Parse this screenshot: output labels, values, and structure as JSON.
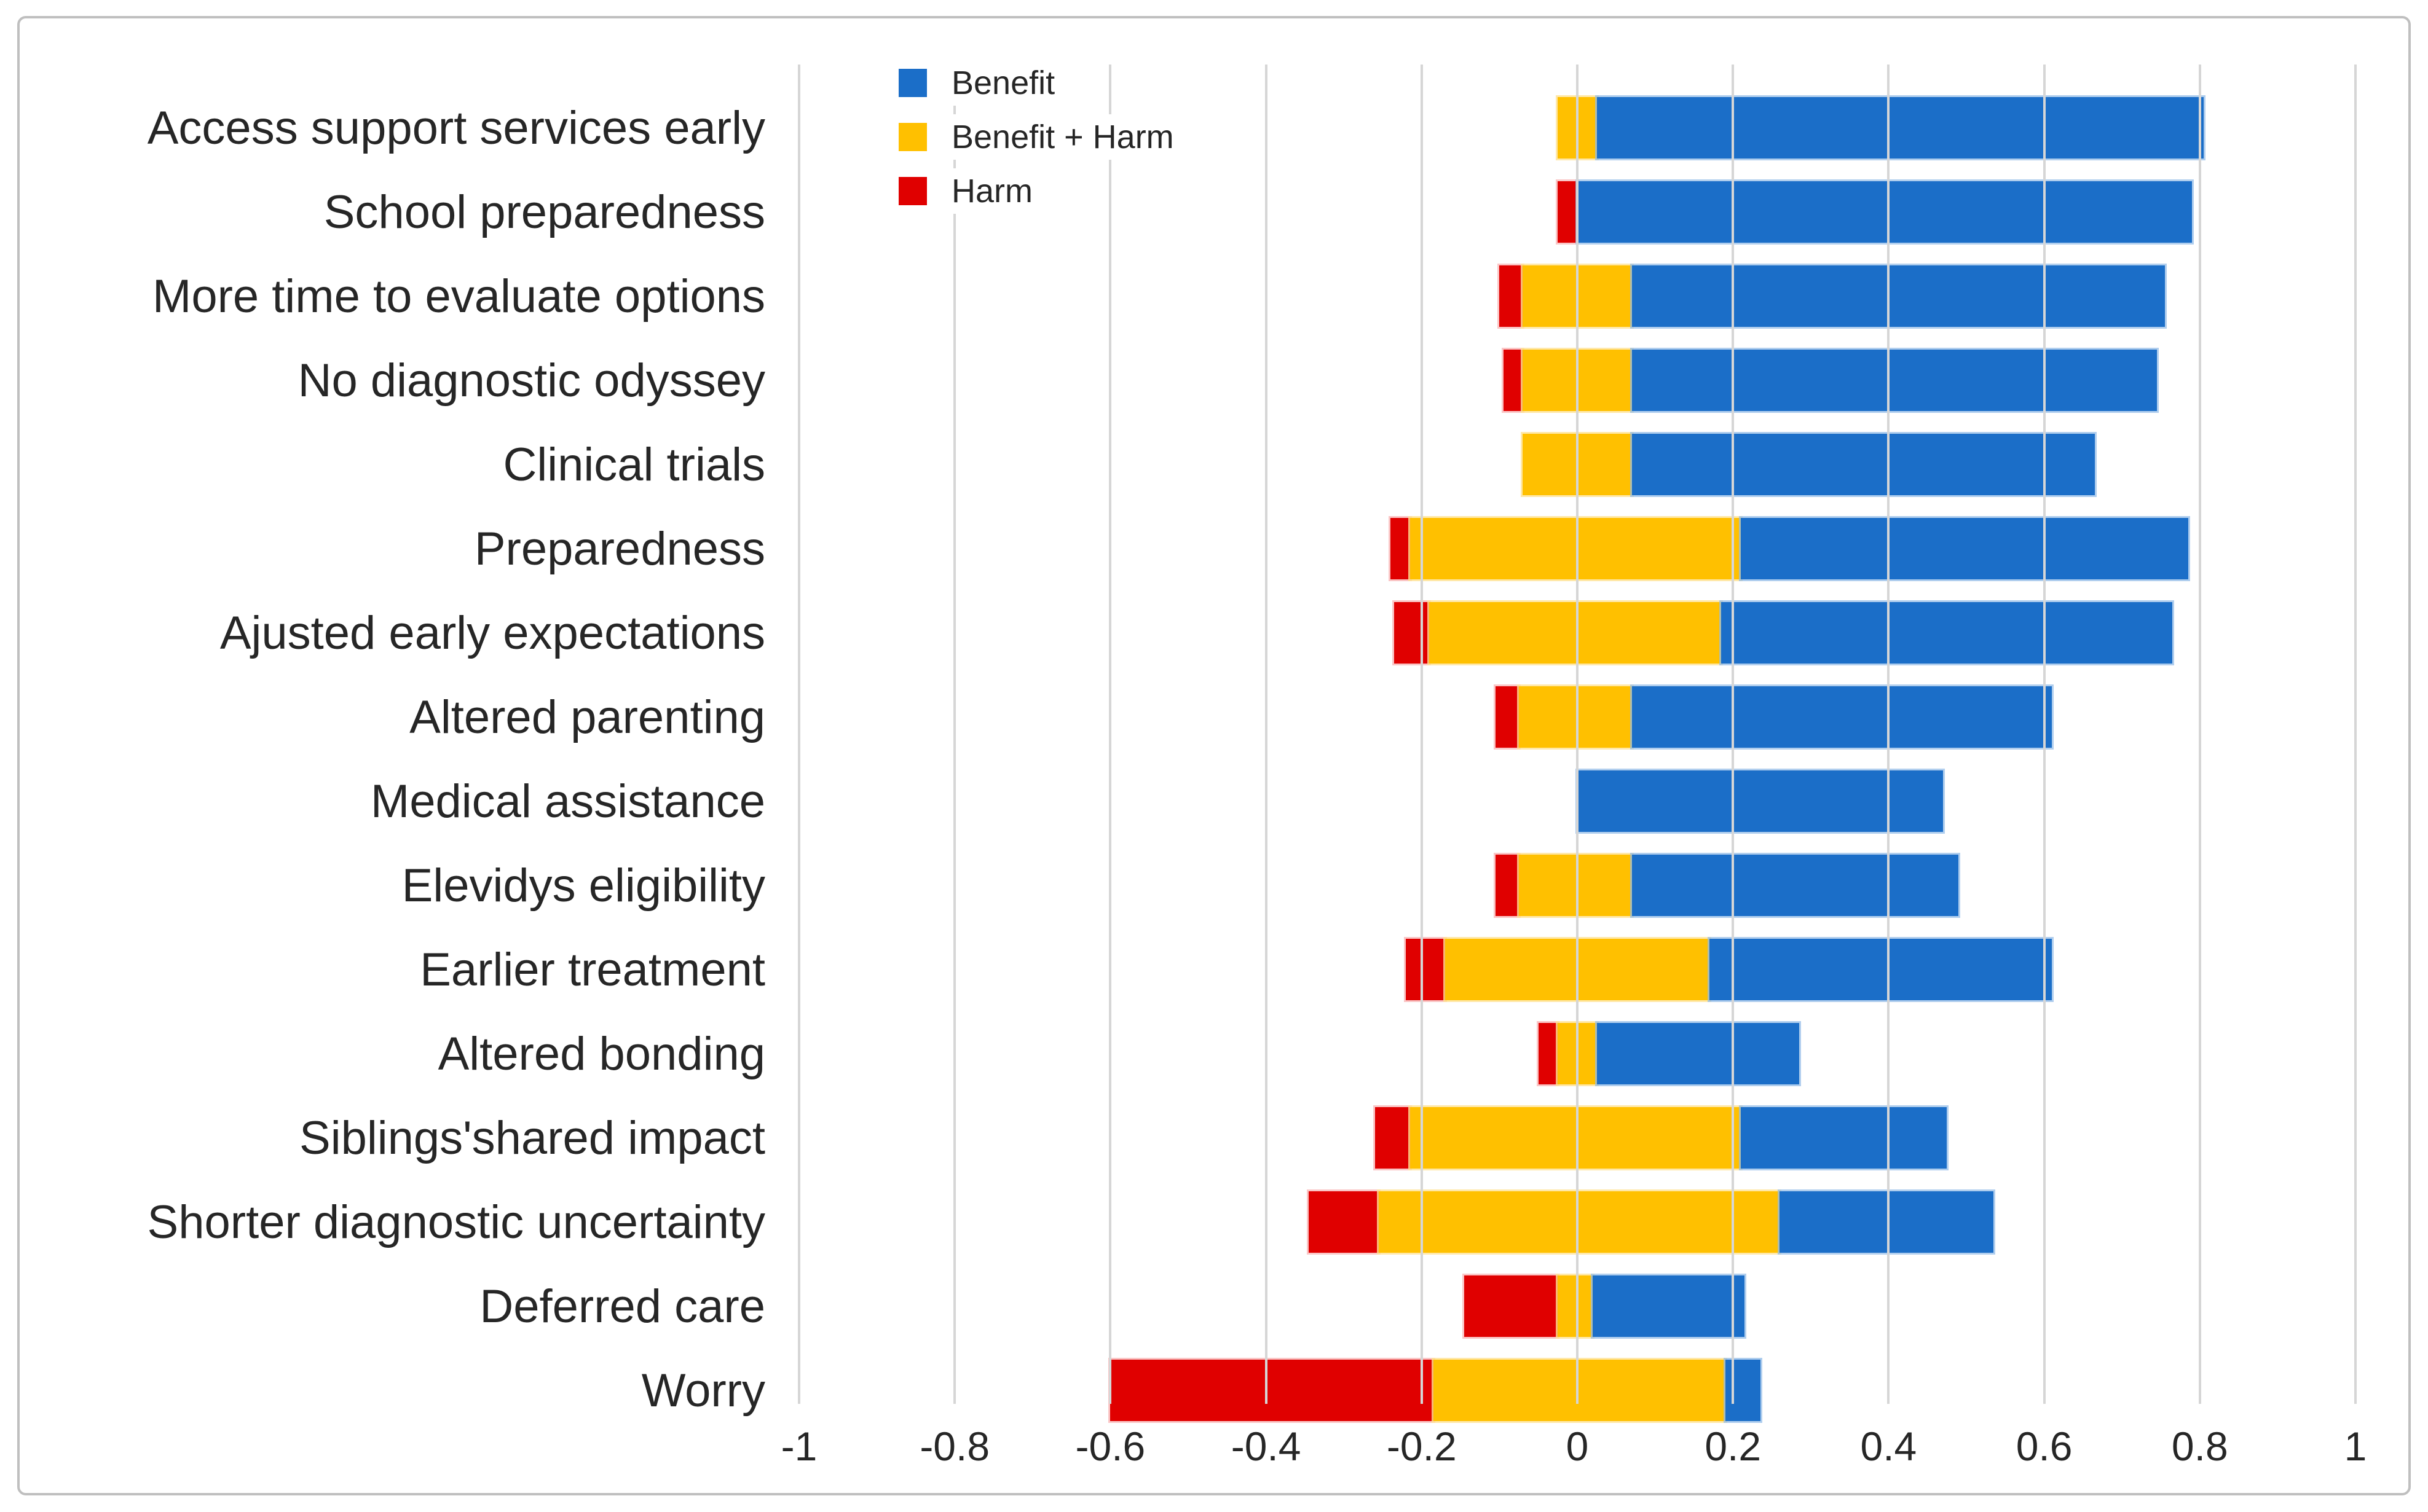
{
  "chart_data": {
    "type": "bar",
    "variant": "horizontal-diverging-stacked",
    "title": "",
    "xlabel": "",
    "ylabel": "",
    "xlim": [
      -1,
      1
    ],
    "xticks": [
      -1,
      -0.8,
      -0.6,
      -0.4,
      -0.2,
      0,
      0.2,
      0.4,
      0.6,
      0.8,
      1
    ],
    "xtick_labels": [
      "-1",
      "-0.8",
      "-0.6",
      "-0.4",
      "-0.2",
      "0",
      "0.2",
      "0.4",
      "0.6",
      "0.8",
      "1"
    ],
    "grid": "vertical gridlines, drawn over bars",
    "legend": {
      "position": "top-left",
      "items": [
        {
          "key": "benefit",
          "label": "Benefit",
          "color": "#1B6EC8"
        },
        {
          "key": "benefit_harm",
          "label": "Benefit + Harm",
          "color": "#FFC000"
        },
        {
          "key": "harm",
          "label": "Harm",
          "color": "#E00000"
        }
      ]
    },
    "series_order": [
      "harm",
      "benefit_harm",
      "benefit"
    ],
    "categories": [
      "Access support services early",
      "School preparedness",
      "More time to evaluate options",
      "No diagnostic odyssey",
      "Clinical trials",
      "Preparedness",
      "Ajusted early expectations",
      "Altered parenting",
      "Medical assistance",
      "Elevidys eligibility",
      "Earlier treatment",
      "Altered bonding",
      "Siblings'shared impact",
      "Shorter diagnostic uncertainty",
      "Deferred care",
      "Worry"
    ],
    "rows": [
      {
        "label": "Access support services early",
        "harm": null,
        "benefit_harm": [
          -0.025,
          0.025
        ],
        "benefit": [
          0.025,
          0.805
        ]
      },
      {
        "label": "School preparedness",
        "harm": [
          -0.025,
          0
        ],
        "benefit_harm": null,
        "benefit": [
          0,
          0.79
        ]
      },
      {
        "label": "More time to evaluate options",
        "harm": [
          -0.1,
          -0.07
        ],
        "benefit_harm": [
          -0.07,
          0.07
        ],
        "benefit": [
          0.07,
          0.755
        ]
      },
      {
        "label": "No diagnostic odyssey",
        "harm": [
          -0.095,
          -0.07
        ],
        "benefit_harm": [
          -0.07,
          0.07
        ],
        "benefit": [
          0.07,
          0.745
        ]
      },
      {
        "label": "Clinical trials",
        "harm": null,
        "benefit_harm": [
          -0.07,
          0.07
        ],
        "benefit": [
          0.07,
          0.665
        ]
      },
      {
        "label": "Preparedness",
        "harm": [
          -0.24,
          -0.215
        ],
        "benefit_harm": [
          -0.215,
          0.21
        ],
        "benefit": [
          0.21,
          0.785
        ]
      },
      {
        "label": "Ajusted early expectations",
        "harm": [
          -0.235,
          -0.19
        ],
        "benefit_harm": [
          -0.19,
          0.185
        ],
        "benefit": [
          0.185,
          0.765
        ]
      },
      {
        "label": "Altered parenting",
        "harm": [
          -0.105,
          -0.075
        ],
        "benefit_harm": [
          -0.075,
          0.07
        ],
        "benefit": [
          0.07,
          0.61
        ]
      },
      {
        "label": "Medical assistance",
        "harm": null,
        "benefit_harm": null,
        "benefit": [
          0,
          0.47
        ]
      },
      {
        "label": "Elevidys eligibility",
        "harm": [
          -0.105,
          -0.075
        ],
        "benefit_harm": [
          -0.075,
          0.07
        ],
        "benefit": [
          0.07,
          0.49
        ]
      },
      {
        "label": "Earlier treatment",
        "harm": [
          -0.22,
          -0.17
        ],
        "benefit_harm": [
          -0.17,
          0.17
        ],
        "benefit": [
          0.17,
          0.61
        ]
      },
      {
        "label": "Altered bonding",
        "harm": [
          -0.05,
          -0.025
        ],
        "benefit_harm": [
          -0.025,
          0.025
        ],
        "benefit": [
          0.025,
          0.285
        ]
      },
      {
        "label": "Siblings'shared impact",
        "harm": [
          -0.26,
          -0.215
        ],
        "benefit_harm": [
          -0.215,
          0.21
        ],
        "benefit": [
          0.21,
          0.475
        ]
      },
      {
        "label": "Shorter diagnostic uncertainty",
        "harm": [
          -0.345,
          -0.255
        ],
        "benefit_harm": [
          -0.255,
          0.26
        ],
        "benefit": [
          0.26,
          0.535
        ]
      },
      {
        "label": "Deferred care",
        "harm": [
          -0.145,
          -0.025
        ],
        "benefit_harm": [
          -0.025,
          0.02
        ],
        "benefit": [
          0.02,
          0.215
        ]
      },
      {
        "label": "Worry",
        "harm": [
          -0.6,
          -0.185
        ],
        "benefit_harm": [
          -0.185,
          0.19
        ],
        "benefit": [
          0.19,
          0.235
        ]
      }
    ],
    "colors": {
      "benefit": "#1B6EC8",
      "benefit_harm": "#FFC000",
      "harm": "#E00000",
      "gridline": "#D6D6D6",
      "text": "#262626",
      "frame_border": "#BFBFBF"
    },
    "layout_note": "bars overlap zero line; mixed Benefit+Harm segment straddles 0, Harm extends left, Benefit extends right"
  }
}
